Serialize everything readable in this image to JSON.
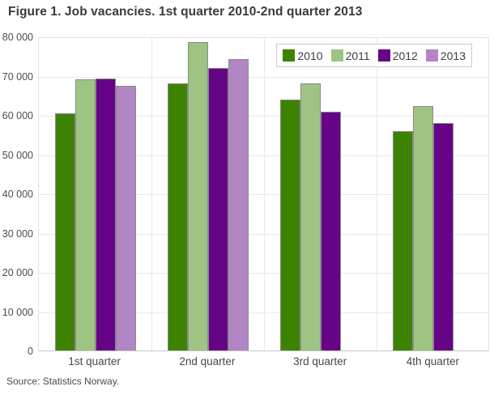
{
  "figure": {
    "title": "Figure 1. Job vacancies. 1st quarter 2010-2nd quarter 2013",
    "source": "Source: Statistics Norway."
  },
  "chart_data": {
    "type": "bar",
    "title": "Figure 1. Job vacancies. 1st quarter 2010-2nd quarter 2013",
    "categories": [
      "1st quarter",
      "2nd quarter",
      "3rd quarter",
      "4th quarter"
    ],
    "series": [
      {
        "name": "2010",
        "color": "#3d8200",
        "values": [
          60500,
          68000,
          64000,
          55900
        ]
      },
      {
        "name": "2011",
        "color": "#9ec483",
        "values": [
          69000,
          78500,
          68000,
          62200
        ]
      },
      {
        "name": "2012",
        "color": "#660487",
        "values": [
          69200,
          72000,
          60900,
          57900
        ]
      },
      {
        "name": "2013",
        "color": "#b286c4",
        "values": [
          67500,
          74200,
          null,
          null
        ]
      }
    ],
    "xlabel": "",
    "ylabel": "",
    "ylim": [
      0,
      80000
    ],
    "yticks": [
      {
        "value": 0,
        "label": "0"
      },
      {
        "value": 10000,
        "label": "10 000"
      },
      {
        "value": 20000,
        "label": "20 000"
      },
      {
        "value": 30000,
        "label": "30 000"
      },
      {
        "value": 40000,
        "label": "40 000"
      },
      {
        "value": 50000,
        "label": "50 000"
      },
      {
        "value": 60000,
        "label": "60 000"
      },
      {
        "value": 70000,
        "label": "70 000"
      },
      {
        "value": 80000,
        "label": "80 000"
      }
    ],
    "grid": true,
    "legend_position": "top-right",
    "source": "Source: Statistics Norway."
  },
  "colors": {
    "gridline": "#e8e8e8",
    "bar_stroke": "#8a8a8a",
    "axis_bottom": "#c6c6c6",
    "text": "#4d4d4d"
  }
}
